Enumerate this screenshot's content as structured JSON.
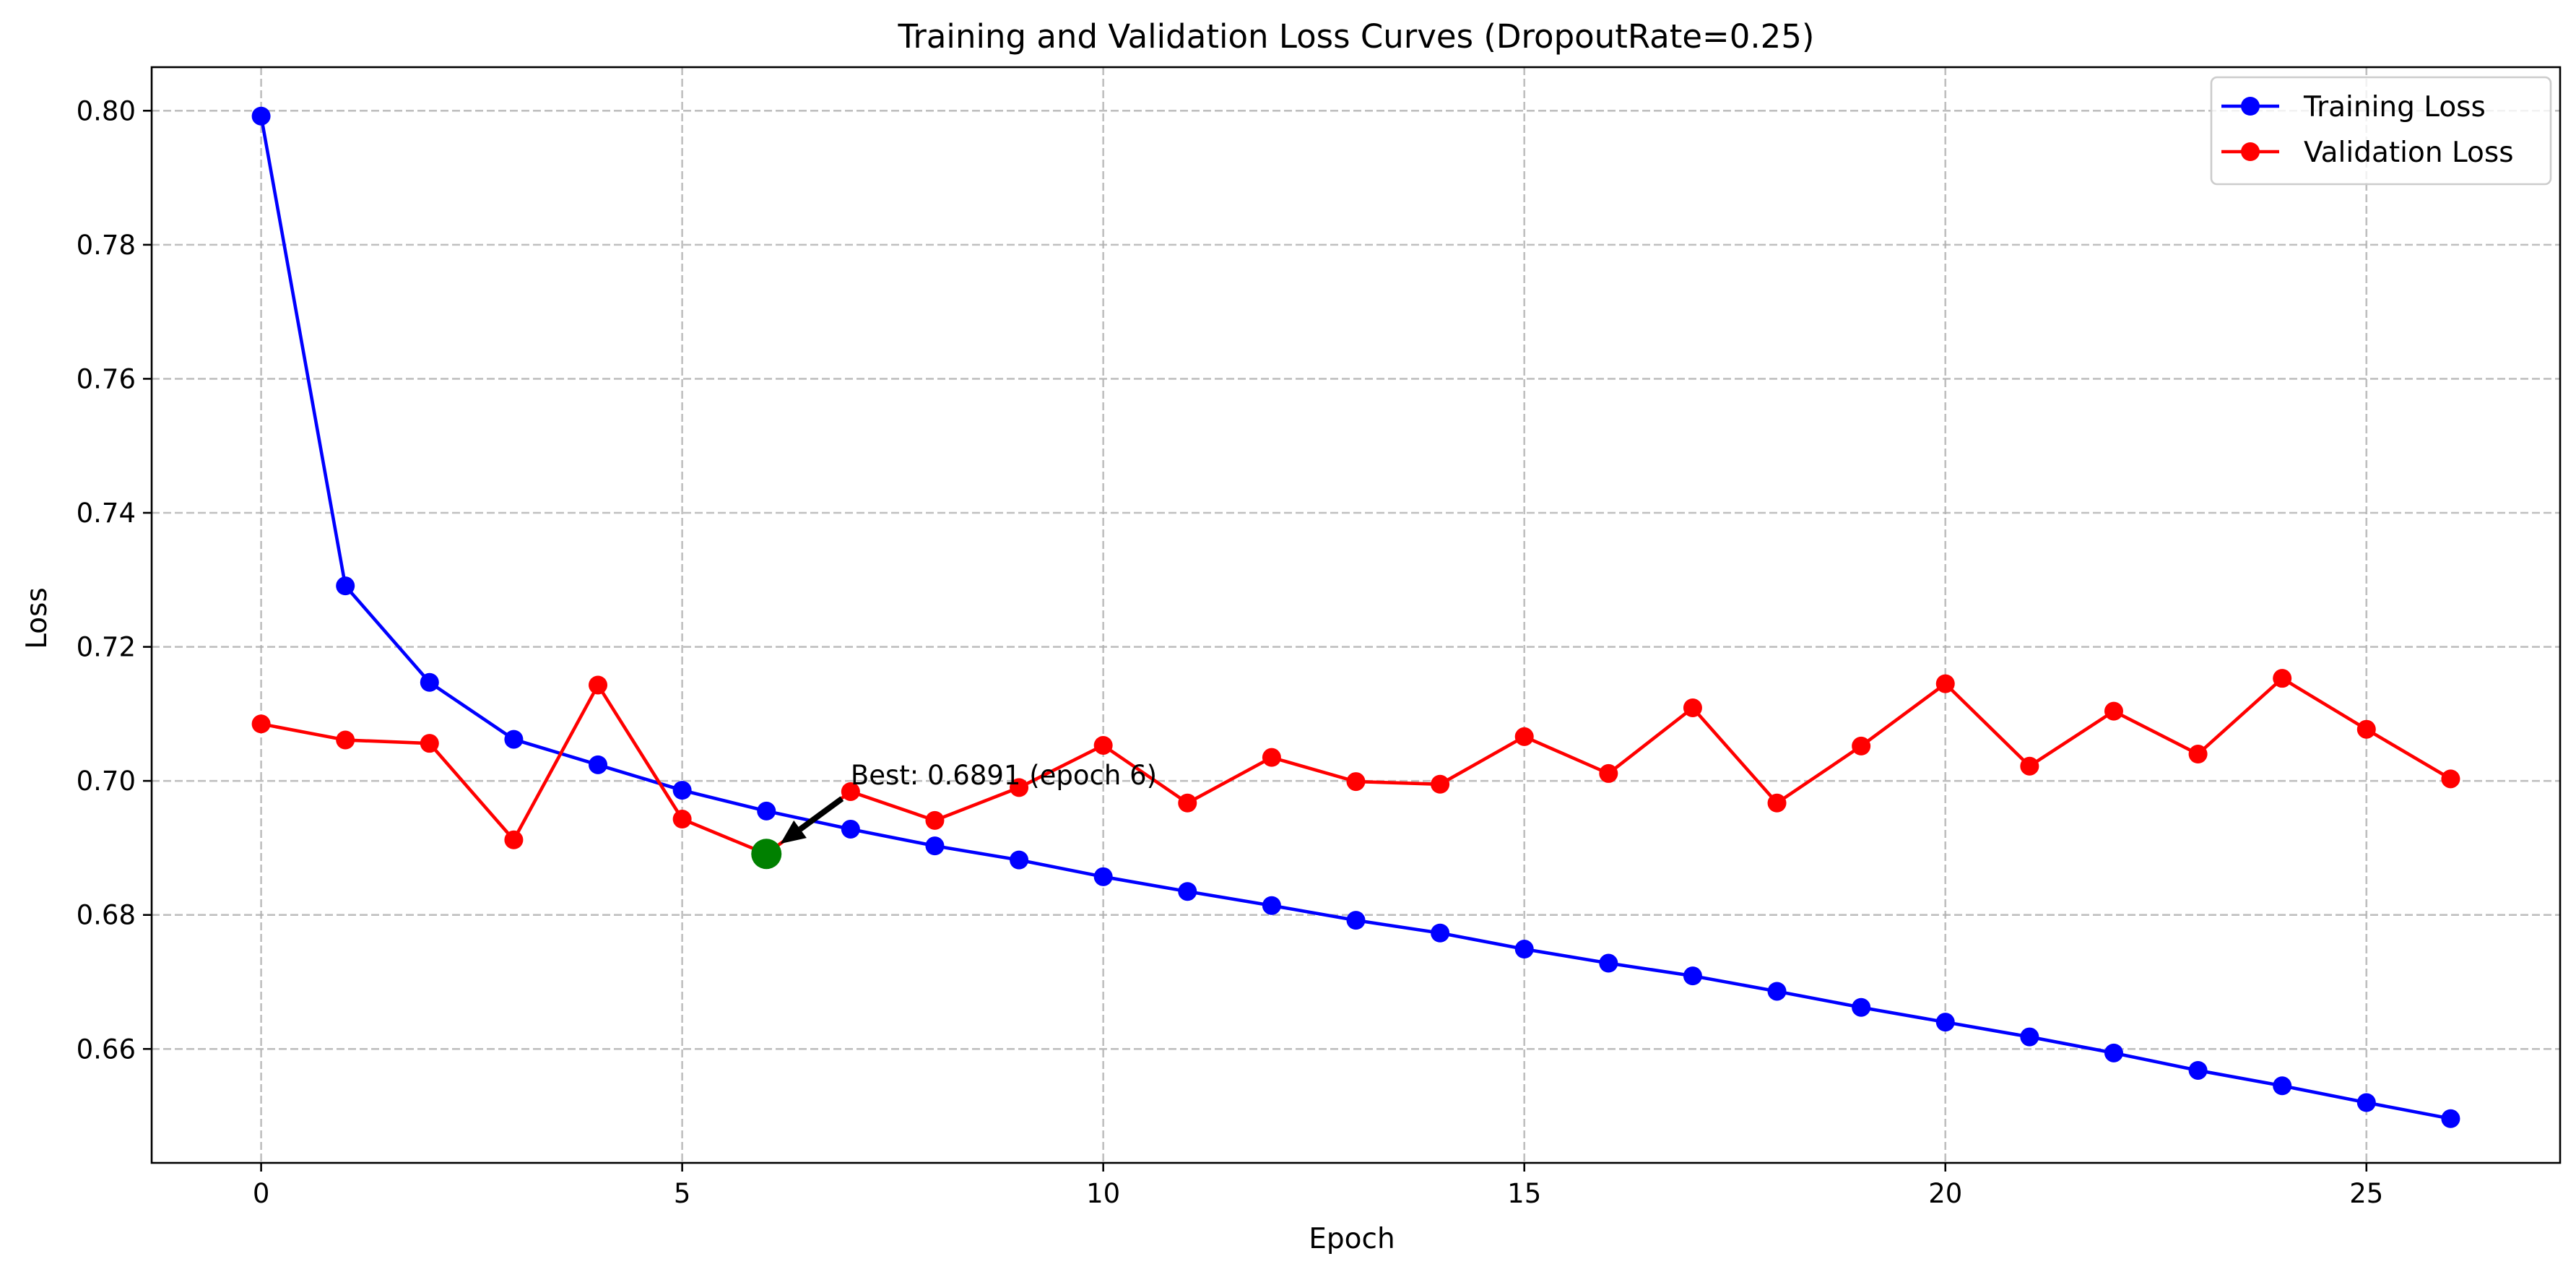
{
  "chart_data": {
    "type": "line",
    "title": "Training and Validation Loss Curves (DropoutRate=0.25)",
    "xlabel": "Epoch",
    "ylabel": "Loss",
    "xlim": [
      -1.3,
      27.3
    ],
    "ylim": [
      0.643,
      0.8065
    ],
    "x_ticks": [
      0,
      5,
      10,
      15,
      20,
      25
    ],
    "x_tick_labels": [
      "0",
      "5",
      "10",
      "15",
      "20",
      "25"
    ],
    "y_ticks": [
      0.66,
      0.68,
      0.7,
      0.72,
      0.74,
      0.76,
      0.78,
      0.8
    ],
    "y_tick_labels": [
      "0.66",
      "0.68",
      "0.70",
      "0.72",
      "0.74",
      "0.76",
      "0.78",
      "0.80"
    ],
    "grid": true,
    "legend_position": "top-right",
    "x": [
      0,
      1,
      2,
      3,
      4,
      5,
      6,
      7,
      8,
      9,
      10,
      11,
      12,
      13,
      14,
      15,
      16,
      17,
      18,
      19,
      20,
      21,
      22,
      23,
      24,
      25,
      26
    ],
    "series": [
      {
        "name": "Training Loss",
        "color": "#0000ff",
        "values": [
          0.7992,
          0.7291,
          0.7147,
          0.7062,
          0.7024,
          0.6986,
          0.6955,
          0.6928,
          0.6903,
          0.6882,
          0.6857,
          0.6835,
          0.6814,
          0.6792,
          0.6773,
          0.6749,
          0.6728,
          0.6709,
          0.6686,
          0.6662,
          0.664,
          0.6618,
          0.6594,
          0.6568,
          0.6545,
          0.652,
          0.6496
        ]
      },
      {
        "name": "Validation Loss",
        "color": "#ff0000",
        "values": [
          0.7085,
          0.7061,
          0.7056,
          0.6912,
          0.7143,
          0.6943,
          0.6891,
          0.6984,
          0.6941,
          0.699,
          0.7053,
          0.6967,
          0.7035,
          0.6999,
          0.6995,
          0.7066,
          0.7011,
          0.7109,
          0.6967,
          0.7052,
          0.7145,
          0.7022,
          0.7104,
          0.704,
          0.7153,
          0.7077,
          0.7003
        ]
      }
    ],
    "best_marker": {
      "x": 6,
      "y": 0.6891,
      "color": "#008000",
      "label": "Best: 0.6891 (epoch 6)",
      "label_anchor": [
        7,
        0.6995
      ]
    }
  }
}
